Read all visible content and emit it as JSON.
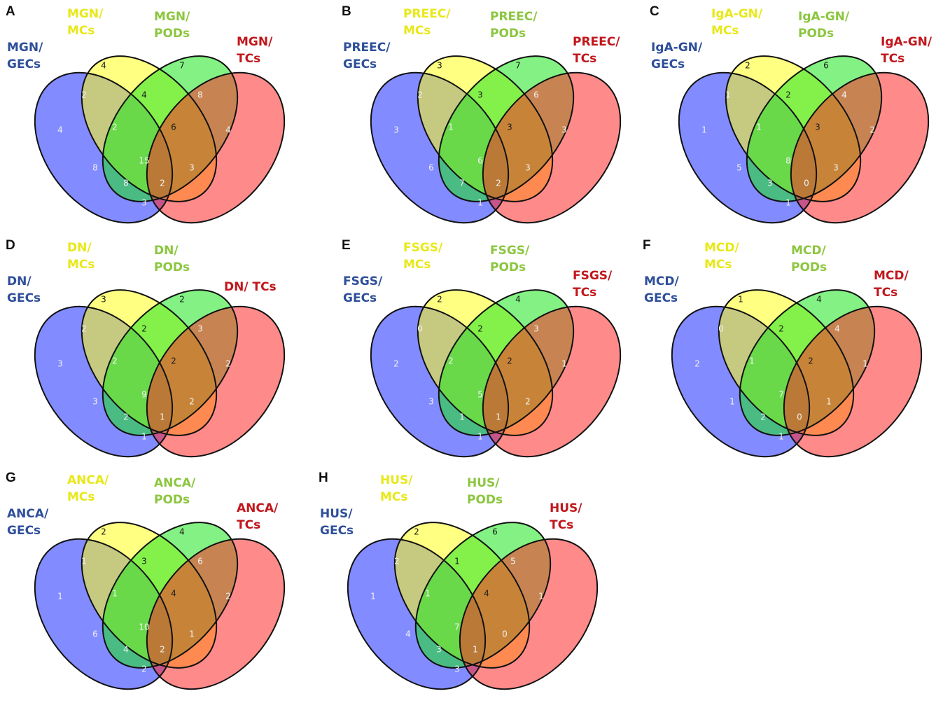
{
  "colors": {
    "gecs": "#1c2cff",
    "mcs": "#ffff1a",
    "pods": "#1ee61e",
    "tcs": "#ff2a2a",
    "gecs_label": "#2e4f9a",
    "mcs_label": "#e8e81a",
    "pods_label": "#8cc63f",
    "tcs_label": "#c0171c"
  },
  "panels": [
    {
      "letter": "A",
      "labels": {
        "gecs": [
          "MGN/",
          "GECs"
        ],
        "mcs": [
          "MGN/",
          "MCs"
        ],
        "pods": [
          "MGN/",
          "PODs"
        ],
        "tcs": [
          "MGN/",
          "TCs"
        ]
      },
      "counts": {
        "G": "4",
        "M": "4",
        "P": "7",
        "T": "4",
        "GM": "2",
        "MP": "4",
        "PT": "8",
        "GT": "3",
        "GMP": "2",
        "MPT": "6",
        "GP": "8",
        "MT": "3",
        "GMPT": "15",
        "GPT": "8",
        "GMT": "2"
      }
    },
    {
      "letter": "B",
      "labels": {
        "gecs": [
          "PREEC/",
          "GECs"
        ],
        "mcs": [
          "PREEC/",
          "MCs"
        ],
        "pods": [
          "PREEC/",
          "PODs"
        ],
        "tcs": [
          "PREEC/",
          "TCs"
        ]
      },
      "counts": {
        "G": "3",
        "M": "3",
        "P": "7",
        "T": "3",
        "GM": "2",
        "MP": "3",
        "PT": "6",
        "GT": "1",
        "GMP": "1",
        "MPT": "3",
        "GP": "6",
        "MT": "3",
        "GMPT": "6",
        "GPT": "7",
        "GMT": "2"
      }
    },
    {
      "letter": "C",
      "labels": {
        "gecs": [
          "IgA-GN/",
          "GECs"
        ],
        "mcs": [
          "IgA-GN/",
          "MCs"
        ],
        "pods": [
          "IgA-GN/",
          "PODs"
        ],
        "tcs": [
          "IgA-GN/",
          "TCs"
        ]
      },
      "counts": {
        "G": "1",
        "M": "2",
        "P": "6",
        "T": "2",
        "GM": "1",
        "MP": "2",
        "PT": "4",
        "GT": "1",
        "GMP": "1",
        "MPT": "3",
        "GP": "5",
        "MT": "3",
        "GMPT": "8",
        "GPT": "3",
        "GMT": "0"
      }
    },
    {
      "letter": "D",
      "labels": {
        "gecs": [
          "DN/",
          "GECs"
        ],
        "mcs": [
          "DN/",
          "MCs"
        ],
        "pods": [
          "DN/",
          "PODs"
        ],
        "tcs": [
          "DN/ TCs"
        ]
      },
      "counts": {
        "G": "3",
        "M": "3",
        "P": "2",
        "T": "2",
        "GM": "2",
        "MP": "2",
        "PT": "3",
        "GT": "1",
        "GMP": "2",
        "MPT": "2",
        "GP": "3",
        "MT": "2",
        "GMPT": "9",
        "GPT": "2",
        "GMT": "1"
      }
    },
    {
      "letter": "E",
      "labels": {
        "gecs": [
          "FSGS/",
          "GECs"
        ],
        "mcs": [
          "FSGS/",
          "MCs"
        ],
        "pods": [
          "FSGS/",
          "PODs"
        ],
        "tcs": [
          "FSGS/",
          "TCs"
        ]
      },
      "counts": {
        "G": "2",
        "M": "2",
        "P": "4",
        "T": "1",
        "GM": "0",
        "MP": "2",
        "PT": "3",
        "GT": "1",
        "GMP": "2",
        "MPT": "2",
        "GP": "3",
        "MT": "2",
        "GMPT": "5",
        "GPT": "1",
        "GMT": "1"
      }
    },
    {
      "letter": "F",
      "labels": {
        "gecs": [
          "MCD/",
          "GECs"
        ],
        "mcs": [
          "MCD/",
          "MCs"
        ],
        "pods": [
          "MCD/",
          "PODs"
        ],
        "tcs": [
          "MCD/",
          "TCs"
        ]
      },
      "counts": {
        "G": "2",
        "M": "1",
        "P": "4",
        "T": "1",
        "GM": "0",
        "MP": "2",
        "PT": "4",
        "GT": "1",
        "GMP": "1",
        "MPT": "2",
        "GP": "1",
        "MT": "1",
        "GMPT": "7",
        "GPT": "2",
        "GMT": "0"
      }
    },
    {
      "letter": "G",
      "labels": {
        "gecs": [
          "ANCA/",
          "GECs"
        ],
        "mcs": [
          "ANCA/",
          "MCs"
        ],
        "pods": [
          "ANCA/",
          "PODs"
        ],
        "tcs": [
          "ANCA/",
          "TCs"
        ]
      },
      "counts": {
        "G": "1",
        "M": "2",
        "P": "4",
        "T": "2",
        "GM": "1",
        "MP": "3",
        "PT": "6",
        "GT": "2",
        "GMP": "1",
        "MPT": "4",
        "GP": "6",
        "MT": "1",
        "GMPT": "10",
        "GPT": "4",
        "GMT": "2"
      }
    },
    {
      "letter": "H",
      "labels": {
        "gecs": [
          "HUS/",
          "GECs"
        ],
        "mcs": [
          "HUS/",
          "MCs"
        ],
        "pods": [
          "HUS/",
          "PODs"
        ],
        "tcs": [
          "HUS/",
          "TCs"
        ]
      },
      "counts": {
        "G": "1",
        "M": "2",
        "P": "6",
        "T": "1",
        "GM": "2",
        "MP": "1",
        "PT": "5",
        "GT": "3",
        "GMP": "1",
        "MPT": "4",
        "GP": "4",
        "MT": "0",
        "GMPT": "7",
        "GPT": "3",
        "GMT": "1"
      }
    }
  ]
}
